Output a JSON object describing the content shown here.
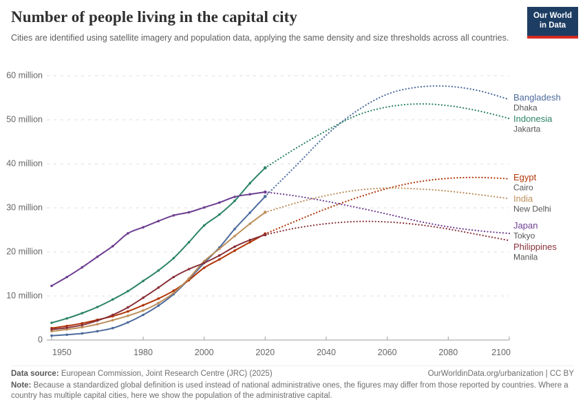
{
  "header": {
    "title": "Number of people living in the capital city",
    "subtitle": "Cities are identified using satellite imagery and population data, applying the same density and size thresholds across all countries.",
    "logo": {
      "line1": "Our World",
      "line2": "in Data"
    }
  },
  "footer": {
    "source_label": "Data source:",
    "source_text": " European Commission, Joint Research Centre (JRC) (2025)",
    "link": "OurWorldinData.org/urbanization | CC BY",
    "note_label": "Note:",
    "note_text": " Because a standardized global definition is used instead of national administrative ones, the figures may differ from those reported by countries. Where a country has multiple capital cities, here we show the population of the administrative capital."
  },
  "colors": {
    "grid": "#dcdcdc",
    "axis": "#9c9c9c",
    "axis_text": "#666666",
    "city_text": "#565656",
    "logo_bg": "#1D3D63",
    "logo_stripe": "#D42B21"
  },
  "chart_data": {
    "type": "line",
    "unit": "million people",
    "xlim": [
      1950,
      2100
    ],
    "ylim": [
      0,
      60
    ],
    "grid": true,
    "legend_position": "right-of-line-ends",
    "x_ticks": [
      1950,
      1980,
      2000,
      2020,
      2040,
      2060,
      2080,
      2100
    ],
    "y_ticks": [
      {
        "value": 0,
        "label": "0"
      },
      {
        "value": 10,
        "label": "10 million"
      },
      {
        "value": 20,
        "label": "20 million"
      },
      {
        "value": 30,
        "label": "30 million"
      },
      {
        "value": 40,
        "label": "40 million"
      },
      {
        "value": 50,
        "label": "50 million"
      },
      {
        "value": 60,
        "label": "60 million"
      }
    ],
    "history_years": [
      1950,
      1955,
      1960,
      1965,
      1970,
      1975,
      1980,
      1985,
      1990,
      1995,
      2000,
      2005,
      2010,
      2015,
      2020
    ],
    "projection_years": [
      2020,
      2030,
      2040,
      2050,
      2060,
      2070,
      2080,
      2090,
      2100
    ],
    "series": [
      {
        "name": "Bangladesh",
        "city": "Dhaka",
        "color": "#4C6A9C",
        "history": [
          1.0,
          1.2,
          1.5,
          2.0,
          2.7,
          4.0,
          5.7,
          7.8,
          10.4,
          13.8,
          17.5,
          21.0,
          25.2,
          28.9,
          32.6
        ],
        "projection": [
          32.6,
          39.5,
          46.5,
          52.0,
          55.8,
          57.4,
          57.6,
          56.6,
          54.6
        ]
      },
      {
        "name": "Indonesia",
        "city": "Jakarta",
        "color": "#2C8465",
        "history": [
          3.9,
          4.9,
          6.1,
          7.5,
          9.2,
          11.1,
          13.4,
          15.8,
          18.6,
          22.2,
          26.0,
          28.5,
          31.6,
          35.6,
          39.1
        ],
        "projection": [
          39.1,
          43.5,
          47.5,
          51.0,
          52.9,
          53.6,
          53.2,
          52.0,
          50.3
        ]
      },
      {
        "name": "Egypt",
        "city": "Cairo",
        "color": "#B13507",
        "history": [
          2.7,
          3.2,
          3.8,
          4.6,
          5.4,
          6.5,
          7.9,
          9.4,
          11.2,
          13.6,
          16.4,
          18.3,
          20.3,
          22.2,
          24.1
        ],
        "projection": [
          24.1,
          27.0,
          29.8,
          32.3,
          34.4,
          35.9,
          36.7,
          36.9,
          36.6
        ]
      },
      {
        "name": "India",
        "city": "New Delhi",
        "color": "#BC8E5A",
        "history": [
          2.0,
          2.4,
          2.9,
          3.6,
          4.5,
          5.5,
          6.7,
          8.4,
          10.7,
          14.0,
          17.9,
          20.7,
          23.6,
          26.4,
          29.0
        ],
        "projection": [
          29.0,
          31.1,
          32.8,
          34.0,
          34.5,
          34.3,
          33.8,
          33.0,
          32.1
        ]
      },
      {
        "name": "Japan",
        "city": "Tokyo",
        "color": "#6D3E91",
        "history": [
          12.3,
          14.3,
          16.5,
          18.9,
          21.3,
          24.2,
          25.6,
          27.0,
          28.3,
          29.0,
          30.1,
          31.2,
          32.5,
          33.1,
          33.6
        ],
        "projection": [
          33.6,
          32.7,
          31.5,
          30.1,
          28.6,
          27.0,
          25.7,
          24.8,
          24.2
        ]
      },
      {
        "name": "Philippines",
        "city": "Manila",
        "color": "#883039",
        "history": [
          2.4,
          2.8,
          3.4,
          4.4,
          5.7,
          7.4,
          9.6,
          11.9,
          14.3,
          16.1,
          17.5,
          19.2,
          21.2,
          22.7,
          23.9
        ],
        "projection": [
          23.9,
          25.4,
          26.4,
          26.9,
          26.8,
          26.2,
          25.2,
          23.9,
          22.6
        ]
      }
    ]
  }
}
